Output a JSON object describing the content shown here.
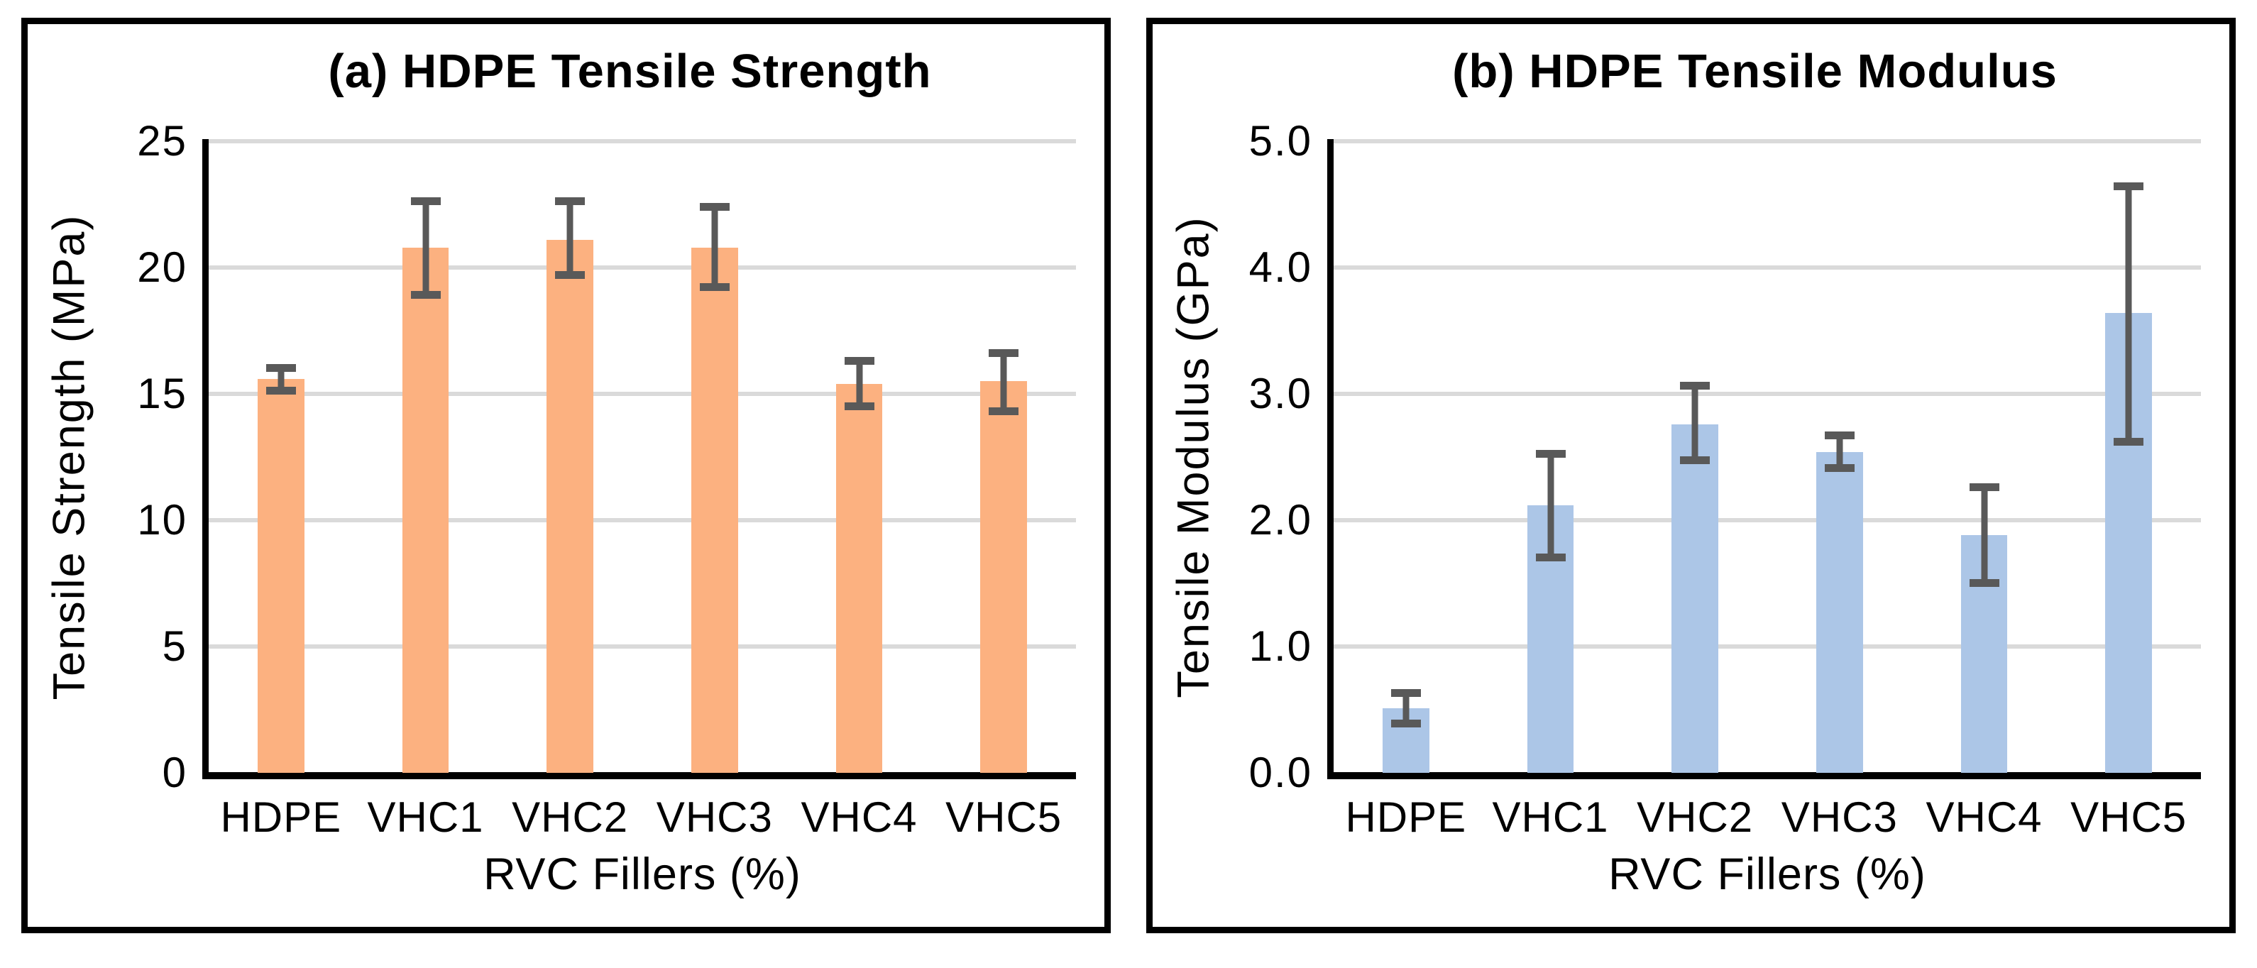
{
  "styles": {
    "error_bar_color": "#595959",
    "gridline_color": "#DADADA",
    "axis_color": "#000000",
    "panel_border_color": "#000000",
    "background": "#FFFFFF",
    "strength_bar_color": "#FCB180",
    "modulus_bar_color": "#ACC6E7"
  },
  "chart_data": [
    {
      "type": "bar",
      "title": "(a) HDPE Tensile Strength",
      "ylabel": "Tensile Strength (MPa)",
      "xlabel": "RVC Fillers (%)",
      "categories": [
        "HDPE",
        "VHC1",
        "VHC2",
        "VHC3",
        "VHC4",
        "VHC5"
      ],
      "values": [
        15.6,
        20.8,
        21.1,
        20.8,
        15.4,
        15.5
      ],
      "error_low": [
        15.1,
        18.9,
        19.7,
        19.2,
        14.5,
        14.3
      ],
      "error_high": [
        16.0,
        22.6,
        22.6,
        22.4,
        16.3,
        16.6
      ],
      "ylim": [
        0,
        25
      ],
      "ytick_step": 5,
      "ytick_labels": [
        "0",
        "5",
        "10",
        "15",
        "20",
        "25"
      ],
      "bar_color": "#FCB180",
      "grid": true,
      "legend": null
    },
    {
      "type": "bar",
      "title": "(b) HDPE Tensile Modulus",
      "ylabel": "Tensile Modulus (GPa)",
      "xlabel": "RVC Fillers (%)",
      "categories": [
        "HDPE",
        "VHC1",
        "VHC2",
        "VHC3",
        "VHC4",
        "VHC5"
      ],
      "values": [
        0.51,
        2.12,
        2.76,
        2.54,
        1.88,
        3.64
      ],
      "error_low": [
        0.39,
        1.7,
        2.47,
        2.41,
        1.5,
        2.62
      ],
      "error_high": [
        0.63,
        2.52,
        3.06,
        2.67,
        2.26,
        4.64
      ],
      "ylim": [
        0,
        5
      ],
      "ytick_step": 1,
      "ytick_labels": [
        "0.0",
        "1.0",
        "2.0",
        "3.0",
        "4.0",
        "5.0"
      ],
      "bar_color": "#ACC6E7",
      "grid": true,
      "legend": null
    }
  ]
}
